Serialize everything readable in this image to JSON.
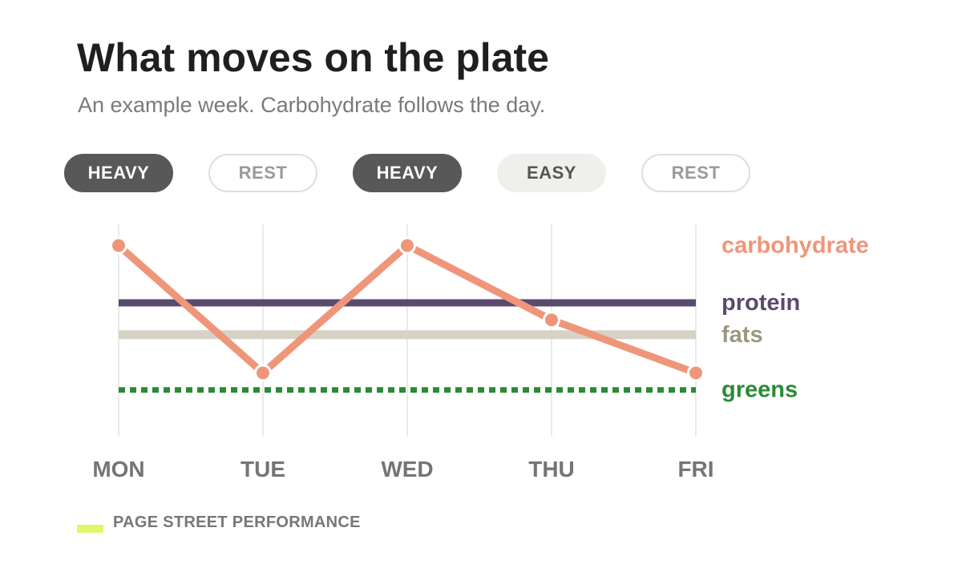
{
  "title": "What moves on the plate",
  "subtitle": "An example week. Carbohydrate follows the day.",
  "day_types": [
    {
      "label": "HEAVY",
      "style": "heavy"
    },
    {
      "label": "REST",
      "style": "rest"
    },
    {
      "label": "HEAVY",
      "style": "heavy"
    },
    {
      "label": "EASY",
      "style": "easy"
    },
    {
      "label": "REST",
      "style": "rest"
    }
  ],
  "chart_data": {
    "type": "line",
    "categories": [
      "MON",
      "TUE",
      "WED",
      "THU",
      "FRI"
    ],
    "ylim": [
      0,
      10
    ],
    "grid": "vertical",
    "legend": "right, labels at line ends",
    "series": [
      {
        "name": "carbohydrate",
        "values": [
          9,
          3,
          9,
          5.5,
          3
        ],
        "color": "#ef967a",
        "style": "solid-markers"
      },
      {
        "name": "protein",
        "values": [
          6.3,
          6.3,
          6.3,
          6.3,
          6.3
        ],
        "color": "#5a4a6e",
        "style": "solid"
      },
      {
        "name": "fats",
        "values": [
          4.8,
          4.8,
          4.8,
          4.8,
          4.8
        ],
        "color": "#d6d2c6",
        "label_color": "#9c9880",
        "style": "solid"
      },
      {
        "name": "greens",
        "values": [
          2.2,
          2.2,
          2.2,
          2.2,
          2.2
        ],
        "color": "#2a8a36",
        "style": "dotted"
      }
    ]
  },
  "footer": {
    "label": "PAGE STREET PERFORMANCE",
    "swatch_color": "#e2f56b"
  }
}
